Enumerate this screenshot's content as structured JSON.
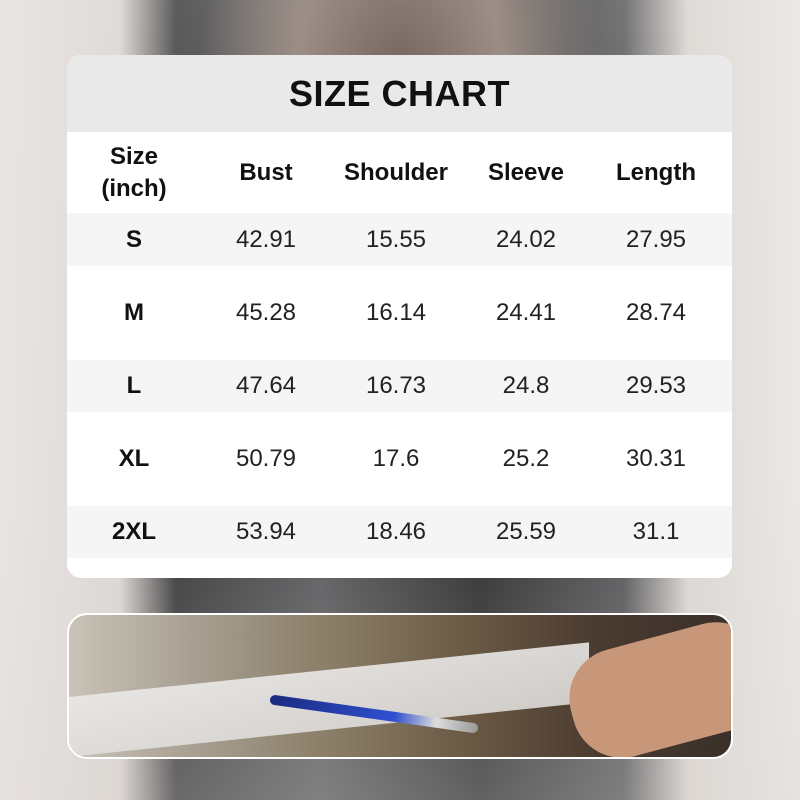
{
  "title": "SIZE CHART",
  "headers": [
    "Size\n(inch)",
    "Bust",
    "Shoulder",
    "Sleeve",
    "Length"
  ],
  "header_size_line1": "Size",
  "header_size_line2": "(inch)",
  "rows": [
    [
      "S",
      "42.91",
      "15.55",
      "24.02",
      "27.95"
    ],
    [
      "M",
      "45.28",
      "16.14",
      "24.41",
      "28.74"
    ],
    [
      "L",
      "47.64",
      "16.73",
      "24.8",
      "29.53"
    ],
    [
      "XL",
      "50.79",
      "17.6",
      "25.2",
      "30.31"
    ],
    [
      "2XL",
      "53.94",
      "18.46",
      "25.59",
      "31.1"
    ]
  ]
}
